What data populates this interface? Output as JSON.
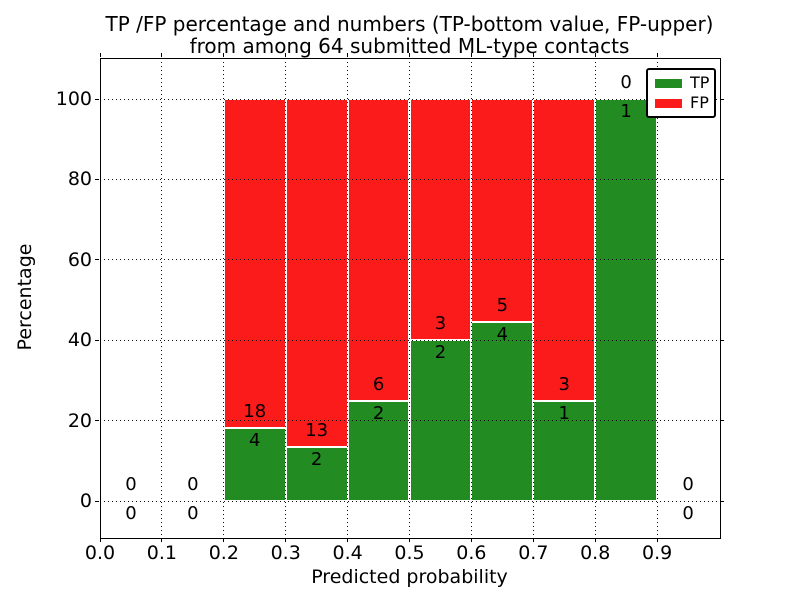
{
  "title": {
    "line1": "TP /FP percentage and numbers (TP-bottom value, FP-upper)",
    "line2": "from among 64 submitted ML-type contacts"
  },
  "axes": {
    "xlabel": "Predicted probability",
    "ylabel": "Percentage",
    "xticks": [
      "0.0",
      "0.1",
      "0.2",
      "0.3",
      "0.4",
      "0.5",
      "0.6",
      "0.7",
      "0.8",
      "0.9"
    ],
    "yticks": [
      "0",
      "20",
      "40",
      "60",
      "80",
      "100"
    ],
    "xlim": [
      0.0,
      1.0
    ],
    "ylim": [
      -10,
      110
    ],
    "grid": "dotted",
    "grid_over_bars": true
  },
  "legend": {
    "position": "upper-right",
    "items": [
      {
        "label": "TP",
        "color": "#228b22"
      },
      {
        "label": "FP",
        "color": "#fb1b1b"
      }
    ]
  },
  "colors": {
    "tp_green": "#228b22",
    "fp_red": "#fb1b1b",
    "bar_edge": "#ffffff",
    "axis": "#000000"
  },
  "chart_data": {
    "type": "bar",
    "stacked": true,
    "orientation": "vertical",
    "bin_width": 0.1,
    "total_submitted": 64,
    "series": [
      {
        "name": "TP",
        "color": "#228b22"
      },
      {
        "name": "FP",
        "color": "#fb1b1b"
      }
    ],
    "bins": [
      {
        "range": [
          0.0,
          0.1
        ],
        "tp": 0,
        "fp": 0,
        "tp_pct": 0,
        "fp_pct": 0
      },
      {
        "range": [
          0.1,
          0.2
        ],
        "tp": 0,
        "fp": 0,
        "tp_pct": 0,
        "fp_pct": 0
      },
      {
        "range": [
          0.2,
          0.3
        ],
        "tp": 4,
        "fp": 18,
        "tp_pct": 18.18,
        "fp_pct": 81.82
      },
      {
        "range": [
          0.3,
          0.4
        ],
        "tp": 2,
        "fp": 13,
        "tp_pct": 13.33,
        "fp_pct": 86.67
      },
      {
        "range": [
          0.4,
          0.5
        ],
        "tp": 2,
        "fp": 6,
        "tp_pct": 25,
        "fp_pct": 75
      },
      {
        "range": [
          0.5,
          0.6
        ],
        "tp": 2,
        "fp": 3,
        "tp_pct": 40,
        "fp_pct": 60
      },
      {
        "range": [
          0.6,
          0.7
        ],
        "tp": 4,
        "fp": 5,
        "tp_pct": 44.44,
        "fp_pct": 55.56
      },
      {
        "range": [
          0.7,
          0.8
        ],
        "tp": 1,
        "fp": 3,
        "tp_pct": 25,
        "fp_pct": 75
      },
      {
        "range": [
          0.8,
          0.9
        ],
        "tp": 1,
        "fp": 0,
        "tp_pct": 100,
        "fp_pct": 0
      },
      {
        "range": [
          0.9,
          1.0
        ],
        "tp": 0,
        "fp": 0,
        "tp_pct": 0,
        "fp_pct": 0
      }
    ],
    "annotation_note": "FP count shown above TP/FP boundary, TP count below"
  }
}
